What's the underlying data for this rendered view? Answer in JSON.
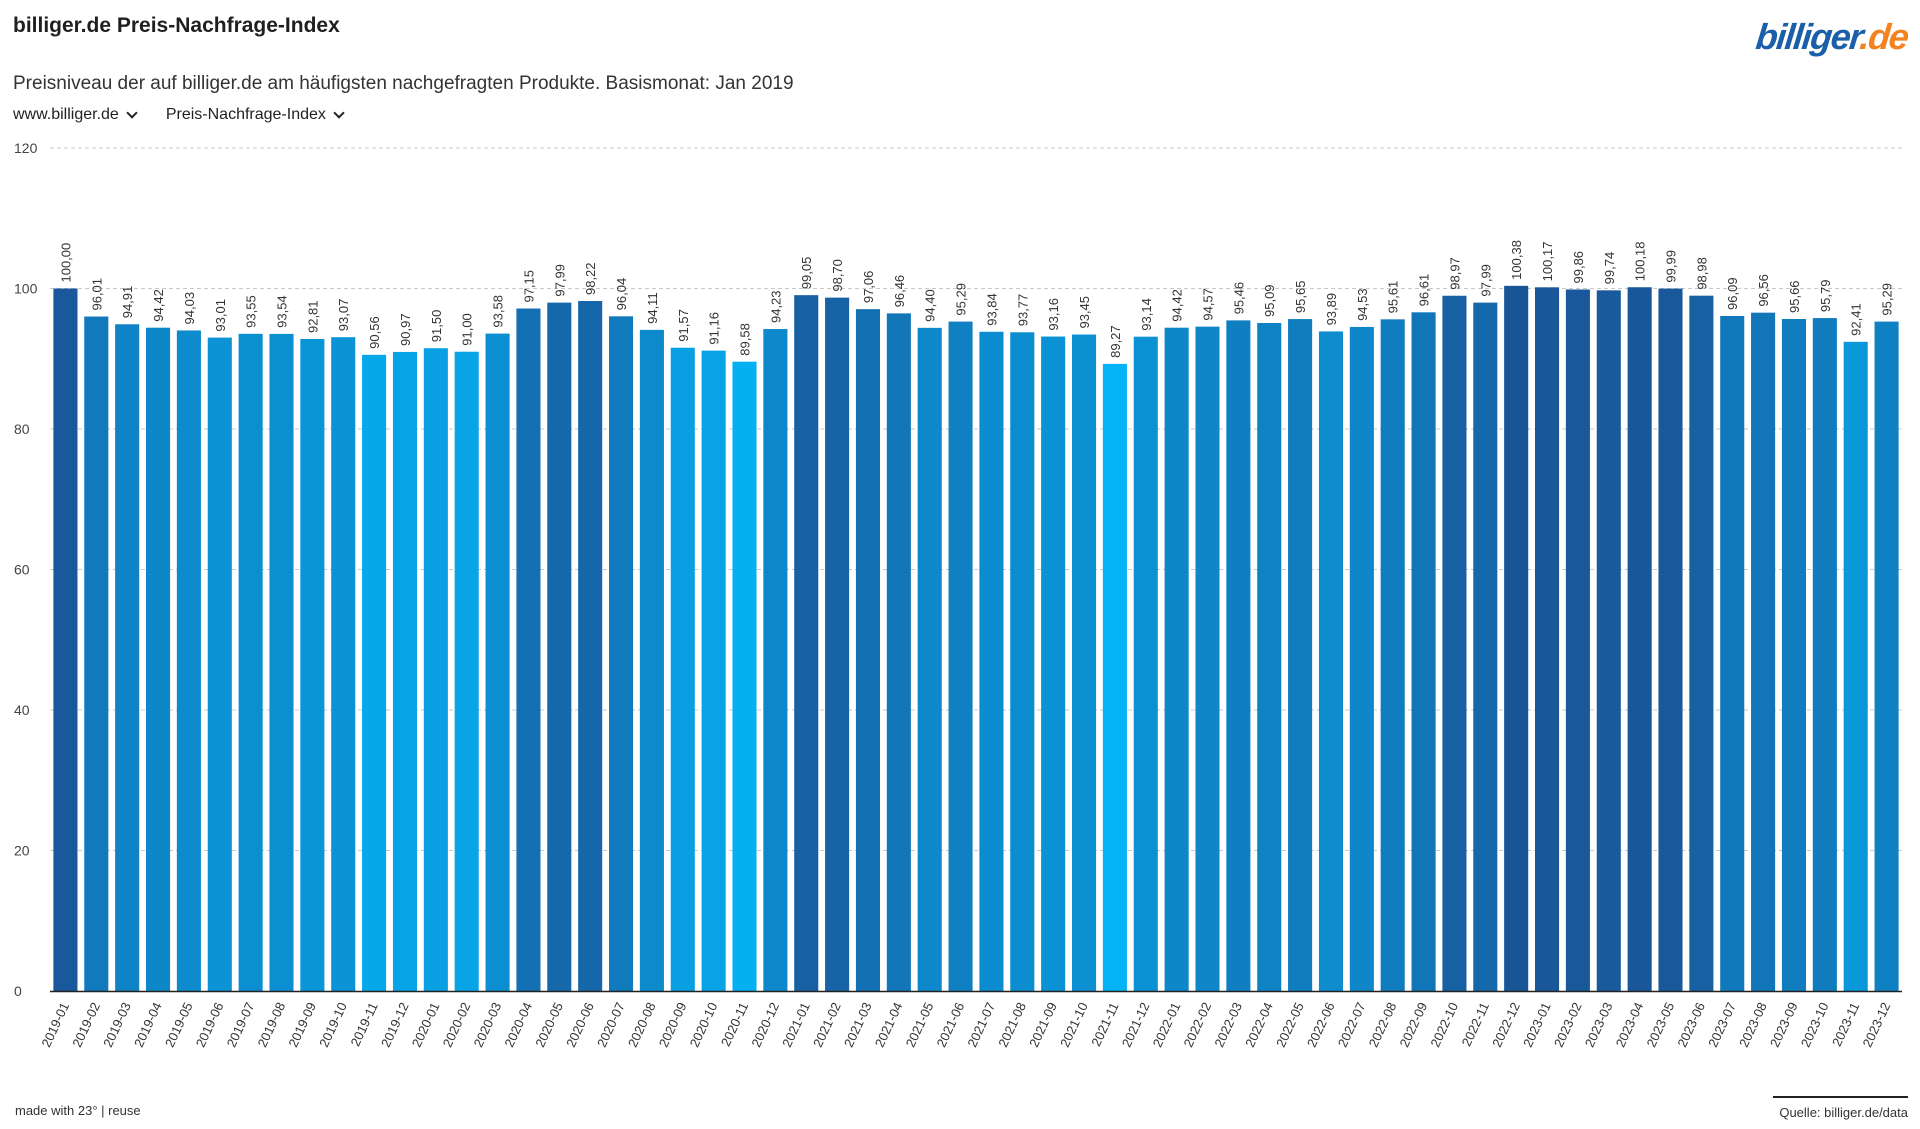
{
  "header": {
    "title": "billiger.de Preis-Nachfrage-Index",
    "subtitle": "Preisniveau der auf billiger.de am häufigsten nachgefragten Produkte. Basismonat: Jan 2019",
    "logo_main": "billiger",
    "logo_tld": ".de"
  },
  "selectors": {
    "site": "www.billiger.de",
    "metric": "Preis-Nachfrage-Index"
  },
  "footer": {
    "made_with": "made with 23° | reuse",
    "source": "Quelle: billiger.de/data"
  },
  "colors": {
    "low": "#03b3f5",
    "high": "#1a5597",
    "grid": "#c8c8c8",
    "axis": "#222222"
  },
  "chart_data": {
    "type": "bar",
    "title": "billiger.de Preis-Nachfrage-Index",
    "subtitle": "Preisniveau der auf billiger.de am häufigsten nachgefragten Produkte. Basismonat: Jan 2019",
    "ylim": [
      0,
      120
    ],
    "yticks": [
      0,
      20,
      40,
      60,
      80,
      100,
      120
    ],
    "grid": true,
    "value_labels_rotated": true,
    "categories": [
      "2019-01",
      "2019-02",
      "2019-03",
      "2019-04",
      "2019-05",
      "2019-06",
      "2019-07",
      "2019-08",
      "2019-09",
      "2019-10",
      "2019-11",
      "2019-12",
      "2020-01",
      "2020-02",
      "2020-03",
      "2020-04",
      "2020-05",
      "2020-06",
      "2020-07",
      "2020-08",
      "2020-09",
      "2020-10",
      "2020-11",
      "2020-12",
      "2021-01",
      "2021-02",
      "2021-03",
      "2021-04",
      "2021-05",
      "2021-06",
      "2021-07",
      "2021-08",
      "2021-09",
      "2021-10",
      "2021-11",
      "2021-12",
      "2022-01",
      "2022-02",
      "2022-03",
      "2022-04",
      "2022-05",
      "2022-06",
      "2022-07",
      "2022-08",
      "2022-09",
      "2022-10",
      "2022-11",
      "2022-12",
      "2023-01",
      "2023-02",
      "2023-03",
      "2023-04",
      "2023-05",
      "2023-06",
      "2023-07",
      "2023-08",
      "2023-09",
      "2023-10",
      "2023-11",
      "2023-12"
    ],
    "values": [
      100.0,
      96.01,
      94.91,
      94.42,
      94.03,
      93.01,
      93.55,
      93.54,
      92.81,
      93.07,
      90.56,
      90.97,
      91.5,
      91.0,
      93.58,
      97.15,
      97.99,
      98.22,
      96.04,
      94.11,
      91.57,
      91.16,
      89.58,
      94.23,
      99.05,
      98.7,
      97.06,
      96.46,
      94.4,
      95.29,
      93.84,
      93.77,
      93.16,
      93.45,
      89.27,
      93.14,
      94.42,
      94.57,
      95.46,
      95.09,
      95.65,
      93.89,
      94.53,
      95.61,
      96.61,
      98.97,
      97.99,
      100.38,
      100.17,
      99.86,
      99.74,
      100.18,
      99.99,
      98.98,
      96.09,
      96.56,
      95.66,
      95.79,
      92.41,
      95.29
    ],
    "value_labels": [
      "100,00",
      "96,01",
      "94,91",
      "94,42",
      "94,03",
      "93,01",
      "93,55",
      "93,54",
      "92,81",
      "93,07",
      "90,56",
      "90,97",
      "91,50",
      "91,00",
      "93,58",
      "97,15",
      "97,99",
      "98,22",
      "96,04",
      "94,11",
      "91,57",
      "91,16",
      "89,58",
      "94,23",
      "99,05",
      "98,70",
      "97,06",
      "96,46",
      "94,40",
      "95,29",
      "93,84",
      "93,77",
      "93,16",
      "93,45",
      "89,27",
      "93,14",
      "94,42",
      "94,57",
      "95,46",
      "95,09",
      "95,65",
      "93,89",
      "94,53",
      "95,61",
      "96,61",
      "98,97",
      "97,99",
      "100,38",
      "100,17",
      "99,86",
      "99,74",
      "100,18",
      "99,99",
      "98,98",
      "96,09",
      "96,56",
      "95,66",
      "95,79",
      "92,41",
      "95,29"
    ]
  }
}
